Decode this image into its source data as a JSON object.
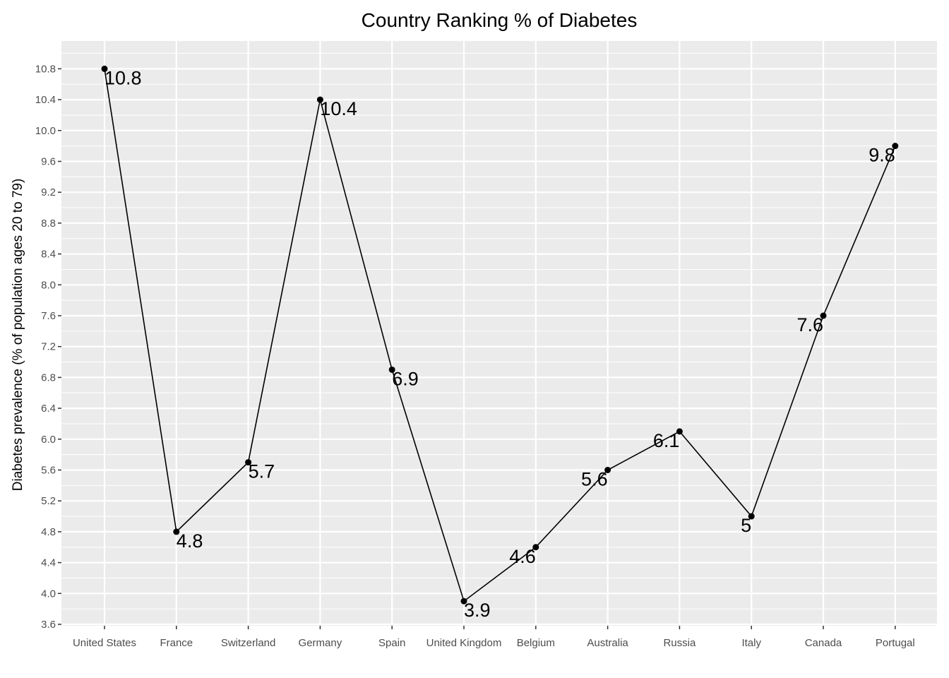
{
  "chart_data": {
    "type": "line",
    "title": "Country Ranking % of Diabetes",
    "xlabel": "",
    "ylabel": "Diabetes prevalence (% of population ages 20 to 79)",
    "categories": [
      "United States",
      "France",
      "Switzerland",
      "Germany",
      "Spain",
      "United Kingdom",
      "Belgium",
      "Australia",
      "Russia",
      "Italy",
      "Canada",
      "Portugal"
    ],
    "values": [
      10.8,
      4.8,
      5.7,
      10.4,
      6.9,
      3.9,
      4.6,
      5.6,
      6.1,
      5.0,
      7.6,
      9.8
    ],
    "data_labels": [
      "10.8",
      "4.8",
      "5.7",
      "10.4",
      "6.9",
      "3.9",
      "4.6",
      "5.6",
      "6.1",
      "5",
      "7.6",
      "9.8"
    ],
    "yticks": [
      "3.6",
      "4.0",
      "4.4",
      "4.8",
      "5.2",
      "5.6",
      "6.0",
      "6.4",
      "6.8",
      "7.2",
      "7.6",
      "8.0",
      "8.4",
      "8.8",
      "9.2",
      "9.6",
      "10.0",
      "10.4",
      "10.8"
    ],
    "ylim": [
      3.6,
      11.15
    ],
    "grid": true,
    "legend": "none",
    "colors": {
      "panel": "#ebebeb",
      "grid": "#ffffff",
      "line": "#000000",
      "point": "#000000"
    }
  }
}
